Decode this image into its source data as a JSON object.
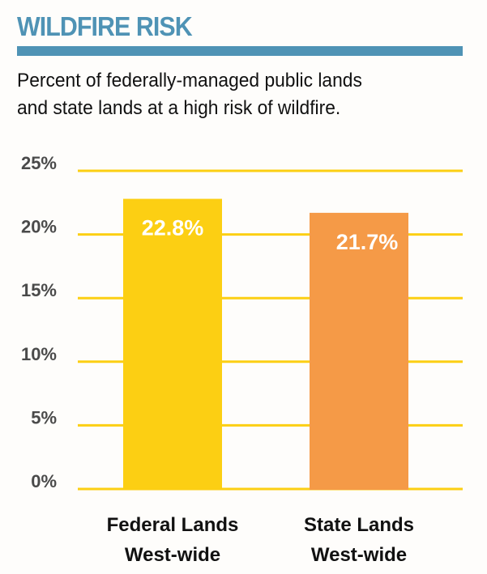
{
  "header": {
    "title": "WILDFIRE RISK",
    "subtitle_line1": "Percent of federally-managed public lands",
    "subtitle_line2": "and state lands at a high risk of wildfire."
  },
  "colors": {
    "title": "#4f93b5",
    "grid": "#fccf13",
    "federal": "#fccf13",
    "state": "#f59a47"
  },
  "chart_data": {
    "type": "bar",
    "title": "WILDFIRE RISK",
    "subtitle": "Percent of federally-managed public lands and state lands at a high risk of wildfire.",
    "xlabel": "",
    "ylabel": "",
    "ylim": [
      0,
      25
    ],
    "yticks": [
      0,
      5,
      10,
      15,
      20,
      25
    ],
    "ytick_labels": [
      "0%",
      "5%",
      "10%",
      "15%",
      "20%",
      "25%"
    ],
    "grid": true,
    "categories": [
      [
        "Federal Lands",
        "West-wide"
      ],
      [
        "State Lands",
        "West-wide"
      ]
    ],
    "values": [
      22.8,
      21.7
    ],
    "data_labels": [
      "22.8%",
      "21.7%"
    ],
    "bar_colors": [
      "#fccf13",
      "#f59a47"
    ]
  }
}
